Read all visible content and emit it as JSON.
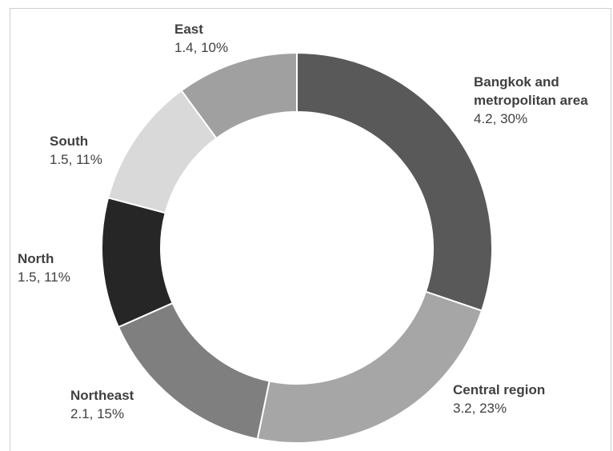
{
  "chart_data": {
    "type": "pie",
    "donut": true,
    "title": "",
    "slices": [
      {
        "label": "Bangkok and metropolitan area",
        "label_lines": [
          "Bangkok and",
          "metropolitan area"
        ],
        "value": 4.2,
        "percent": 30,
        "value_label": "4.2, 30%",
        "color": "#595959"
      },
      {
        "label": "Central region",
        "label_lines": [
          "Central region"
        ],
        "value": 3.2,
        "percent": 23,
        "value_label": "3.2, 23%",
        "color": "#a6a6a6"
      },
      {
        "label": "Northeast",
        "label_lines": [
          "Northeast"
        ],
        "value": 2.1,
        "percent": 15,
        "value_label": "2.1, 15%",
        "color": "#7f7f7f"
      },
      {
        "label": "North",
        "label_lines": [
          "North"
        ],
        "value": 1.5,
        "percent": 11,
        "value_label": "1.5, 11%",
        "color": "#262626"
      },
      {
        "label": "South",
        "label_lines": [
          "South"
        ],
        "value": 1.5,
        "percent": 11,
        "value_label": "1.5, 11%",
        "color": "#d9d9d9"
      },
      {
        "label": "East",
        "label_lines": [
          "East"
        ],
        "value": 1.4,
        "percent": 10,
        "value_label": "1.4, 10%",
        "color": "#a0a0a0"
      }
    ]
  }
}
